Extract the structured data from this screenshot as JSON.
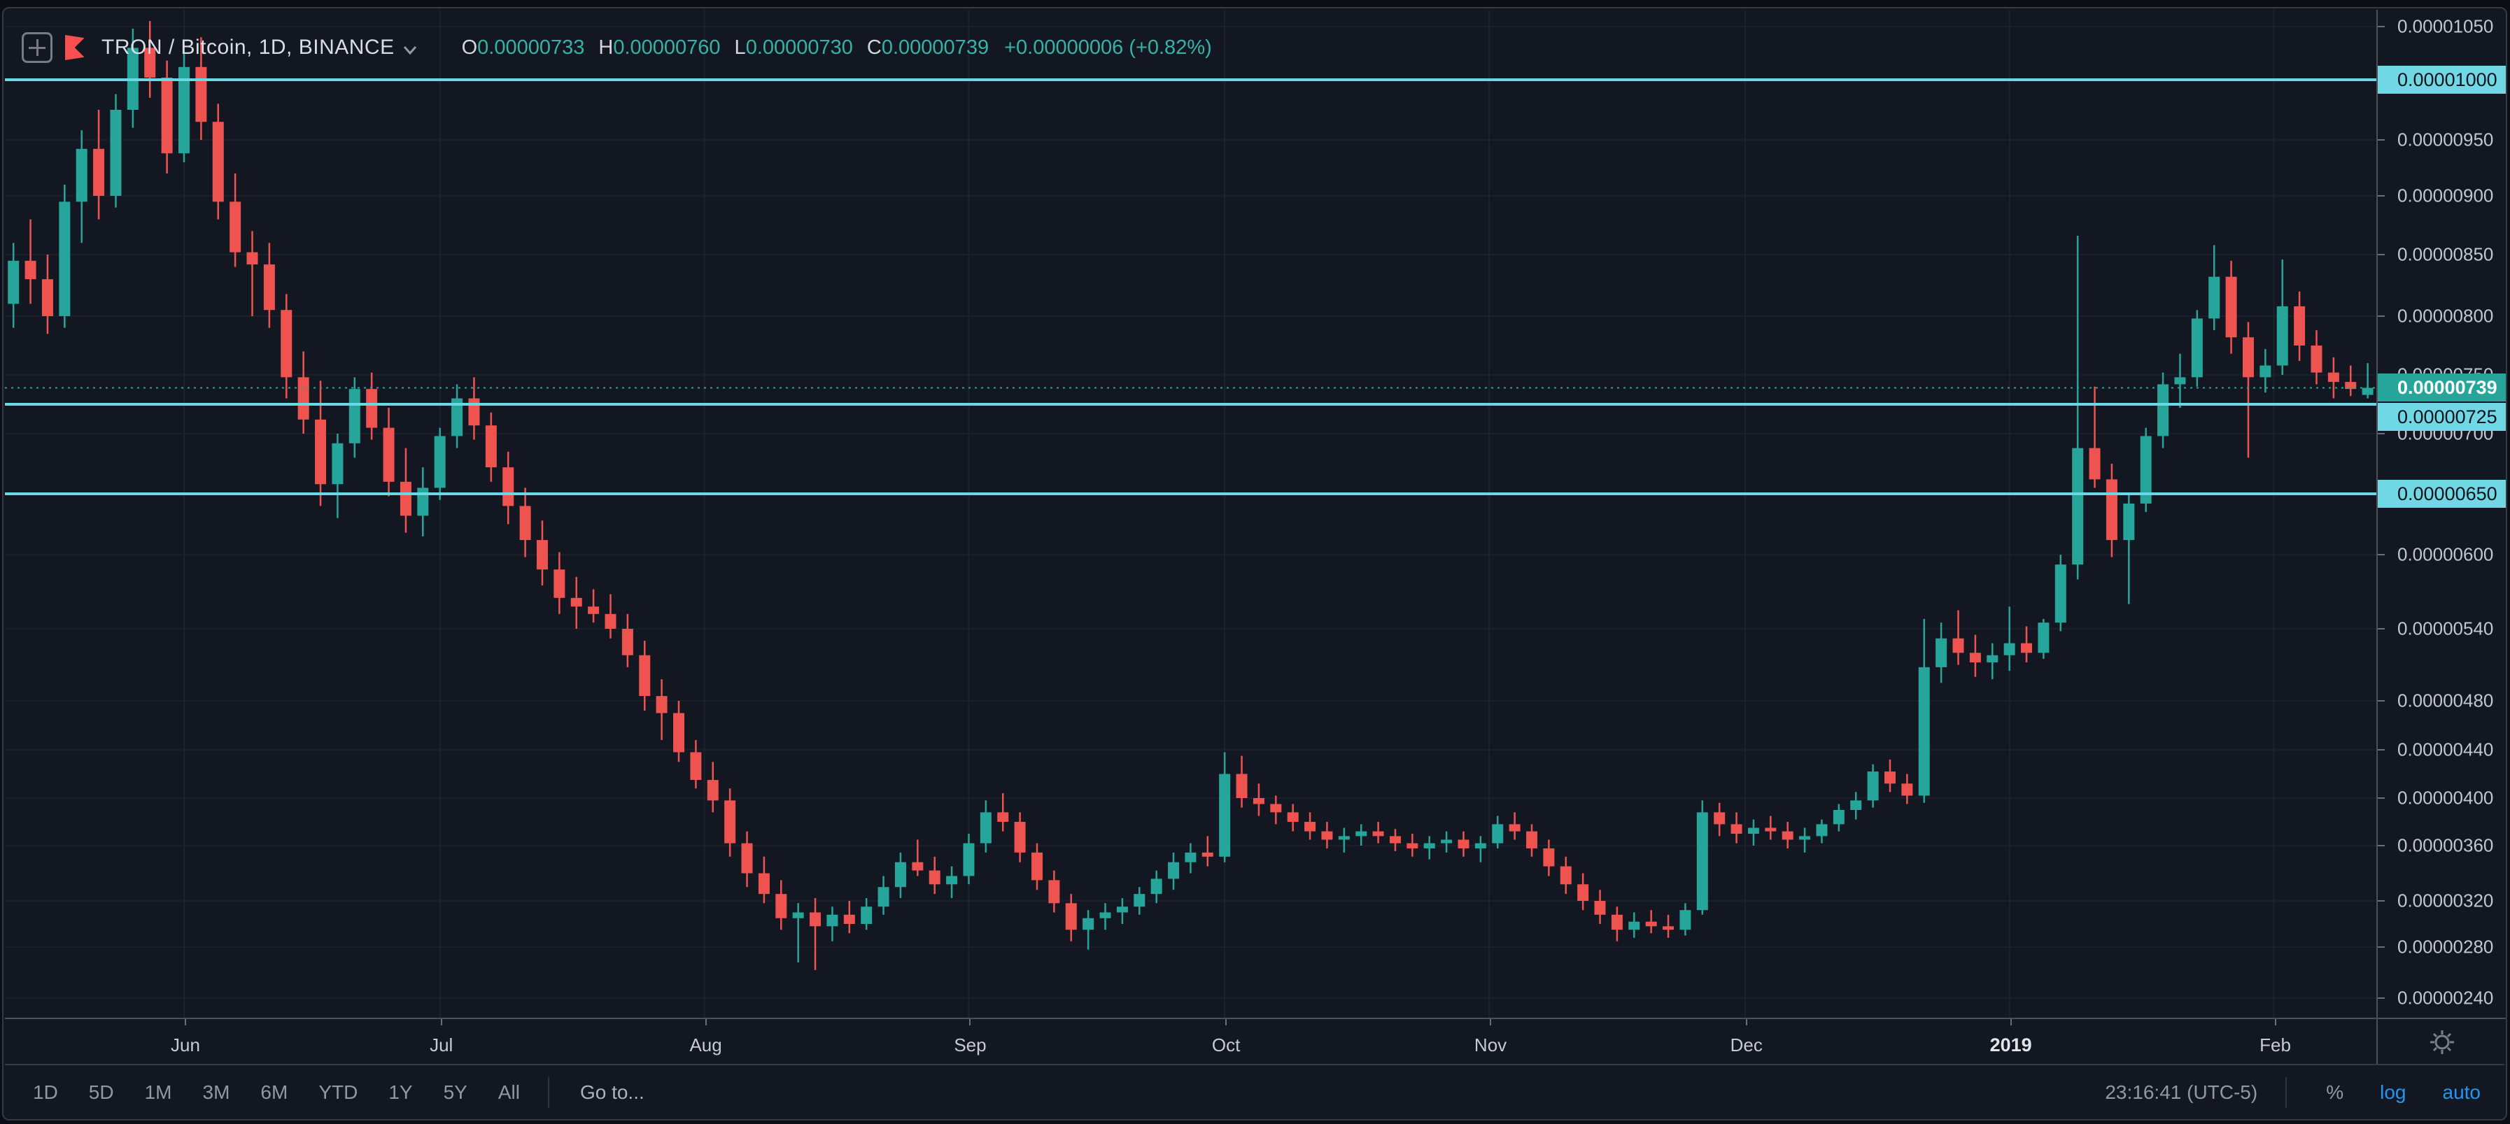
{
  "header": {
    "title": "TRON / Bitcoin, 1D, BINANCE",
    "ohlc": {
      "o_label": "O",
      "o": "0.00000733",
      "h_label": "H",
      "h": "0.00000760",
      "l_label": "L",
      "l": "0.00000730",
      "c_label": "C",
      "c": "0.00000739",
      "change": "+0.00000006 (+0.82%)"
    }
  },
  "price_axis": {
    "ticks": [
      "0.00001050",
      "0.00001000",
      "0.00000950",
      "0.00000900",
      "0.00000850",
      "0.00000800",
      "0.00000750",
      "0.00000700",
      "0.00000650",
      "0.00000600",
      "0.00000540",
      "0.00000480",
      "0.00000440",
      "0.00000400",
      "0.00000360",
      "0.00000320",
      "0.00000280",
      "0.00000240"
    ]
  },
  "toolbar": {
    "ranges": [
      "1D",
      "5D",
      "1M",
      "3M",
      "6M",
      "YTD",
      "1Y",
      "5Y",
      "All"
    ],
    "goto_label": "Go to...",
    "time_label": "23:16:41 (UTC-5)",
    "percent_label": "%",
    "log_label": "log",
    "auto_label": "auto"
  },
  "colors": {
    "background": "#131722",
    "up_candle": "#26a69a",
    "down_candle": "#ef5350",
    "level_line": "#68d9e2",
    "level_label_bg": "#70d8e4",
    "current_label_bg": "#26a69a",
    "accent_blue": "#2196f3",
    "logo_red": "#f75050",
    "grid": "#1e222e"
  },
  "chart_data": {
    "type": "candlestick",
    "title": "TRON / Bitcoin, 1D, BINANCE",
    "price_unit": "BTC x 1e-8",
    "y_ticks": [
      1050,
      1000,
      950,
      900,
      850,
      800,
      750,
      700,
      650,
      600,
      540,
      480,
      440,
      400,
      360,
      320,
      280,
      240
    ],
    "levels": [
      {
        "value": 1000,
        "label": "0.00001000"
      },
      {
        "value": 725,
        "label": "0.00000725"
      },
      {
        "value": 650,
        "label": "0.00000650"
      }
    ],
    "current": {
      "value": 739,
      "label": "0.00000739"
    },
    "x_ticks": [
      {
        "label": "Jun",
        "index": 10,
        "strong": false
      },
      {
        "label": "Jul",
        "index": 25,
        "strong": false
      },
      {
        "label": "Aug",
        "index": 40.5,
        "strong": false
      },
      {
        "label": "Sep",
        "index": 56,
        "strong": false
      },
      {
        "label": "Oct",
        "index": 71,
        "strong": false
      },
      {
        "label": "Nov",
        "index": 86.5,
        "strong": false
      },
      {
        "label": "Dec",
        "index": 101.5,
        "strong": false
      },
      {
        "label": "2019",
        "index": 117,
        "strong": true
      },
      {
        "label": "Feb",
        "index": 132.5,
        "strong": false
      }
    ],
    "candles": [
      [
        810,
        860,
        790,
        845
      ],
      [
        845,
        880,
        810,
        830
      ],
      [
        830,
        850,
        785,
        800
      ],
      [
        800,
        910,
        790,
        895
      ],
      [
        895,
        958,
        860,
        942
      ],
      [
        942,
        975,
        880,
        900
      ],
      [
        900,
        988,
        890,
        975
      ],
      [
        975,
        1048,
        960,
        1030
      ],
      [
        1030,
        1055,
        985,
        1002
      ],
      [
        1002,
        1018,
        920,
        938
      ],
      [
        938,
        1025,
        930,
        1012
      ],
      [
        1012,
        1040,
        950,
        965
      ],
      [
        965,
        980,
        880,
        895
      ],
      [
        895,
        920,
        840,
        852
      ],
      [
        852,
        870,
        800,
        842
      ],
      [
        842,
        860,
        790,
        805
      ],
      [
        805,
        818,
        730,
        748
      ],
      [
        748,
        770,
        700,
        712
      ],
      [
        712,
        745,
        640,
        658
      ],
      [
        658,
        700,
        630,
        692
      ],
      [
        692,
        748,
        680,
        738
      ],
      [
        738,
        752,
        695,
        705
      ],
      [
        705,
        722,
        648,
        660
      ],
      [
        660,
        688,
        618,
        632
      ],
      [
        632,
        672,
        615,
        655
      ],
      [
        655,
        705,
        645,
        698
      ],
      [
        698,
        742,
        688,
        730
      ],
      [
        730,
        748,
        695,
        707
      ],
      [
        707,
        718,
        660,
        672
      ],
      [
        672,
        685,
        625,
        640
      ],
      [
        640,
        655,
        598,
        612
      ],
      [
        612,
        628,
        575,
        588
      ],
      [
        588,
        602,
        552,
        565
      ],
      [
        565,
        582,
        540,
        558
      ],
      [
        558,
        572,
        545,
        552
      ],
      [
        552,
        568,
        532,
        540
      ],
      [
        540,
        552,
        508,
        518
      ],
      [
        518,
        530,
        472,
        484
      ],
      [
        484,
        498,
        448,
        470
      ],
      [
        470,
        480,
        430,
        438
      ],
      [
        438,
        448,
        408,
        415
      ],
      [
        415,
        430,
        388,
        398
      ],
      [
        398,
        408,
        352,
        362
      ],
      [
        362,
        372,
        330,
        340
      ],
      [
        340,
        352,
        318,
        325
      ],
      [
        325,
        335,
        295,
        305
      ],
      [
        305,
        318,
        268,
        310
      ],
      [
        310,
        322,
        262,
        298
      ],
      [
        298,
        315,
        285,
        308
      ],
      [
        308,
        320,
        292,
        300
      ],
      [
        300,
        322,
        295,
        315
      ],
      [
        315,
        338,
        308,
        330
      ],
      [
        330,
        355,
        322,
        348
      ],
      [
        348,
        365,
        338,
        342
      ],
      [
        342,
        352,
        325,
        332
      ],
      [
        332,
        345,
        322,
        338
      ],
      [
        338,
        370,
        332,
        362
      ],
      [
        362,
        398,
        355,
        388
      ],
      [
        388,
        404,
        372,
        380
      ],
      [
        380,
        388,
        348,
        355
      ],
      [
        355,
        362,
        328,
        335
      ],
      [
        335,
        342,
        310,
        318
      ],
      [
        318,
        325,
        285,
        295
      ],
      [
        295,
        312,
        278,
        305
      ],
      [
        305,
        318,
        295,
        310
      ],
      [
        310,
        322,
        300,
        315
      ],
      [
        315,
        330,
        308,
        325
      ],
      [
        325,
        342,
        318,
        336
      ],
      [
        336,
        355,
        328,
        348
      ],
      [
        348,
        362,
        340,
        355
      ],
      [
        355,
        368,
        345,
        352
      ],
      [
        352,
        438,
        348,
        420
      ],
      [
        420,
        435,
        392,
        400
      ],
      [
        400,
        412,
        385,
        395
      ],
      [
        395,
        402,
        378,
        388
      ],
      [
        388,
        395,
        372,
        380
      ],
      [
        380,
        388,
        365,
        372
      ],
      [
        372,
        380,
        358,
        365
      ],
      [
        365,
        375,
        355,
        368
      ],
      [
        368,
        378,
        360,
        372
      ],
      [
        372,
        380,
        362,
        368
      ],
      [
        368,
        374,
        356,
        362
      ],
      [
        362,
        370,
        352,
        358
      ],
      [
        358,
        368,
        350,
        362
      ],
      [
        362,
        372,
        355,
        365
      ],
      [
        365,
        372,
        352,
        358
      ],
      [
        358,
        368,
        348,
        362
      ],
      [
        362,
        385,
        358,
        378
      ],
      [
        378,
        388,
        365,
        372
      ],
      [
        372,
        378,
        352,
        358
      ],
      [
        358,
        365,
        338,
        345
      ],
      [
        345,
        352,
        325,
        332
      ],
      [
        332,
        340,
        312,
        320
      ],
      [
        320,
        328,
        300,
        308
      ],
      [
        308,
        315,
        285,
        295
      ],
      [
        295,
        310,
        288,
        302
      ],
      [
        302,
        312,
        292,
        298
      ],
      [
        298,
        308,
        288,
        295
      ],
      [
        295,
        318,
        290,
        312
      ],
      [
        312,
        398,
        308,
        388
      ],
      [
        388,
        396,
        368,
        378
      ],
      [
        378,
        388,
        362,
        370
      ],
      [
        370,
        382,
        360,
        375
      ],
      [
        375,
        385,
        365,
        372
      ],
      [
        372,
        380,
        358,
        365
      ],
      [
        365,
        375,
        355,
        368
      ],
      [
        368,
        382,
        362,
        378
      ],
      [
        378,
        395,
        372,
        390
      ],
      [
        390,
        405,
        382,
        398
      ],
      [
        398,
        428,
        392,
        422
      ],
      [
        422,
        432,
        405,
        412
      ],
      [
        412,
        420,
        395,
        402
      ],
      [
        402,
        548,
        396,
        508
      ],
      [
        508,
        545,
        495,
        532
      ],
      [
        532,
        555,
        510,
        520
      ],
      [
        520,
        535,
        500,
        512
      ],
      [
        512,
        528,
        498,
        518
      ],
      [
        518,
        558,
        505,
        528
      ],
      [
        528,
        542,
        512,
        520
      ],
      [
        520,
        548,
        515,
        545
      ],
      [
        545,
        600,
        538,
        592
      ],
      [
        592,
        866,
        580,
        688
      ],
      [
        688,
        740,
        655,
        662
      ],
      [
        662,
        675,
        598,
        612
      ],
      [
        612,
        650,
        560,
        642
      ],
      [
        642,
        705,
        635,
        698
      ],
      [
        698,
        752,
        688,
        742
      ],
      [
        742,
        768,
        722,
        748
      ],
      [
        748,
        805,
        740,
        798
      ],
      [
        798,
        858,
        788,
        832
      ],
      [
        832,
        845,
        768,
        782
      ],
      [
        782,
        795,
        680,
        748
      ],
      [
        748,
        772,
        735,
        758
      ],
      [
        758,
        846,
        750,
        808
      ],
      [
        808,
        820,
        762,
        775
      ],
      [
        775,
        788,
        742,
        752
      ],
      [
        752,
        765,
        730,
        744
      ],
      [
        744,
        758,
        732,
        738
      ],
      [
        733,
        760,
        730,
        739
      ]
    ]
  }
}
